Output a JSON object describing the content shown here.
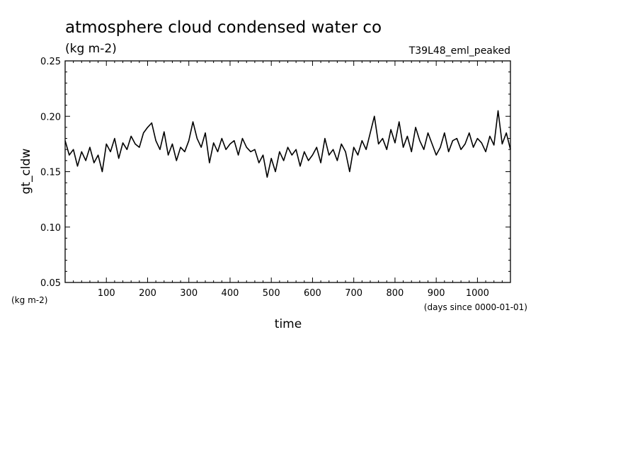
{
  "chart_data": {
    "type": "line",
    "title": "atmosphere cloud condensed water co",
    "subtitle_units": "(kg m-2)",
    "experiment": "T39L48_eml_peaked",
    "xlabel": "time",
    "x_units": "(days since 0000-01-01)",
    "ylabel": "gt_cldw",
    "y_units": "(kg m-2)",
    "xlim": [
      0,
      1080
    ],
    "ylim": [
      0.05,
      0.25
    ],
    "x_ticks": [
      "100",
      "200",
      "300",
      "400",
      "500",
      "600",
      "700",
      "800",
      "900",
      "1000"
    ],
    "y_ticks": [
      "0.05",
      "0.10",
      "0.15",
      "0.20",
      "0.25"
    ],
    "grid": false,
    "series": [
      {
        "color": "#000000",
        "x": [
          0,
          10,
          20,
          30,
          40,
          50,
          60,
          70,
          80,
          90,
          100,
          110,
          120,
          130,
          140,
          150,
          160,
          170,
          180,
          190,
          200,
          210,
          220,
          230,
          240,
          250,
          260,
          270,
          280,
          290,
          300,
          310,
          320,
          330,
          340,
          350,
          360,
          370,
          380,
          390,
          400,
          410,
          420,
          430,
          440,
          450,
          460,
          470,
          480,
          490,
          500,
          510,
          520,
          530,
          540,
          550,
          560,
          570,
          580,
          590,
          600,
          610,
          620,
          630,
          640,
          650,
          660,
          670,
          680,
          690,
          700,
          710,
          720,
          730,
          740,
          750,
          760,
          770,
          780,
          790,
          800,
          810,
          820,
          830,
          840,
          850,
          860,
          870,
          880,
          890,
          900,
          910,
          920,
          930,
          940,
          950,
          960,
          970,
          980,
          990,
          1000,
          1010,
          1020,
          1030,
          1040,
          1050,
          1060,
          1070,
          1080
        ],
        "y": [
          0.178,
          0.165,
          0.17,
          0.155,
          0.168,
          0.16,
          0.172,
          0.158,
          0.165,
          0.15,
          0.175,
          0.168,
          0.18,
          0.162,
          0.176,
          0.17,
          0.182,
          0.175,
          0.172,
          0.185,
          0.19,
          0.194,
          0.178,
          0.17,
          0.186,
          0.165,
          0.175,
          0.16,
          0.172,
          0.168,
          0.178,
          0.195,
          0.18,
          0.172,
          0.185,
          0.158,
          0.176,
          0.168,
          0.18,
          0.17,
          0.175,
          0.178,
          0.165,
          0.18,
          0.172,
          0.168,
          0.17,
          0.158,
          0.165,
          0.145,
          0.162,
          0.15,
          0.168,
          0.16,
          0.172,
          0.165,
          0.17,
          0.155,
          0.168,
          0.16,
          0.165,
          0.172,
          0.158,
          0.18,
          0.165,
          0.17,
          0.16,
          0.175,
          0.168,
          0.15,
          0.172,
          0.165,
          0.178,
          0.17,
          0.185,
          0.2,
          0.175,
          0.18,
          0.17,
          0.188,
          0.176,
          0.195,
          0.172,
          0.182,
          0.168,
          0.19,
          0.178,
          0.17,
          0.185,
          0.175,
          0.165,
          0.172,
          0.185,
          0.168,
          0.178,
          0.18,
          0.17,
          0.175,
          0.185,
          0.172,
          0.18,
          0.176,
          0.168,
          0.182,
          0.174,
          0.205,
          0.175,
          0.185,
          0.17
        ]
      }
    ]
  }
}
